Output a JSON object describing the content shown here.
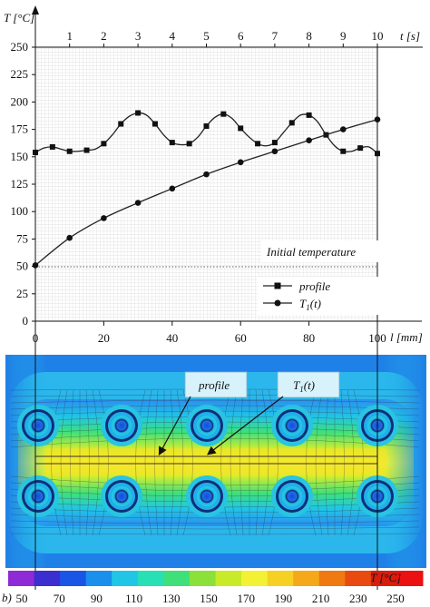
{
  "chart_data": {
    "type": "line",
    "x_bottom": {
      "label": "l [mm]",
      "ticks": [
        "0",
        "20",
        "40",
        "60",
        "80",
        "100"
      ],
      "range": [
        0,
        100
      ]
    },
    "x_top": {
      "label": "t [s]",
      "ticks": [
        "1",
        "2",
        "3",
        "4",
        "5",
        "6",
        "7",
        "8",
        "9",
        "10"
      ],
      "range": [
        0,
        10
      ]
    },
    "y": {
      "label": "T [°C]",
      "ticks": [
        "0",
        "25",
        "50",
        "75",
        "100",
        "125",
        "150",
        "175",
        "200",
        "225",
        "250"
      ],
      "range": [
        0,
        250
      ]
    },
    "grid": "fine gray grid inside plot area",
    "initial_temperature": {
      "label": "Initial temperature",
      "value": 50
    },
    "legend_placement": "bottom-right",
    "series": [
      {
        "name": "profile",
        "marker": "square",
        "x": [
          0,
          2.5,
          5,
          7.5,
          10,
          12.5,
          15,
          17.5,
          20,
          22.5,
          25,
          27.5,
          30,
          32.5,
          35,
          37.5,
          40,
          42.5,
          45,
          47.5,
          50,
          52.5,
          55,
          57.5,
          60,
          62.5,
          65,
          67.5,
          70,
          72.5,
          75,
          77.5,
          80,
          82.5,
          85,
          87.5,
          90,
          92.5,
          95,
          97.5,
          100
        ],
        "values": [
          154,
          158,
          159,
          157,
          155,
          155,
          156,
          157,
          162,
          170,
          180,
          187,
          190,
          188,
          180,
          170,
          163,
          161,
          162,
          168,
          178,
          186,
          189,
          185,
          176,
          168,
          162,
          160,
          163,
          172,
          181,
          188,
          188,
          182,
          170,
          160,
          155,
          155,
          158,
          159,
          153
        ]
      },
      {
        "name": "T1(t)",
        "marker": "circle",
        "x": [
          0,
          1,
          2,
          3,
          4,
          5,
          6,
          7,
          8,
          9,
          10
        ],
        "values": [
          51,
          76,
          94,
          108,
          121,
          134,
          145,
          155,
          165,
          175,
          184
        ]
      }
    ]
  },
  "callouts": {
    "profile": "profile",
    "t1_base": "T",
    "t1_sub": "1",
    "t1_arg": "(t)"
  },
  "colorbar": {
    "panel_label": "b)",
    "unit_label": "T [°C]",
    "tick_labels": [
      "50",
      "70",
      "90",
      "110",
      "130",
      "150",
      "170",
      "190",
      "210",
      "230",
      "250"
    ],
    "colors": [
      "#8e2bd6",
      "#3b2fd0",
      "#1a55e6",
      "#1b8fec",
      "#21c6e6",
      "#27e0b4",
      "#3fe07a",
      "#8be03a",
      "#c8ea28",
      "#f2f232",
      "#f7d024",
      "#f5a81a",
      "#ef7a12",
      "#e84a10",
      "#d81d0e",
      "#ec1010"
    ]
  }
}
